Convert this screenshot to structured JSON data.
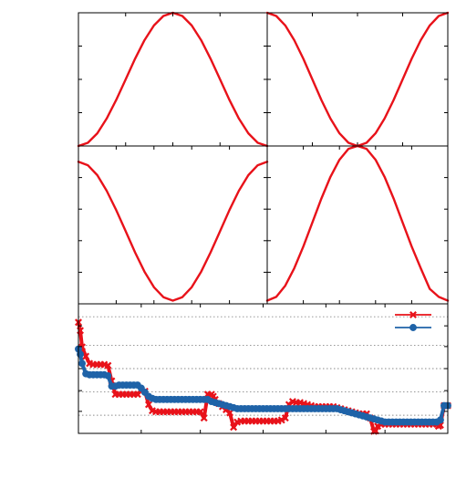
{
  "chart_data": [
    {
      "type": "line",
      "panel": "top-left",
      "title": "",
      "xlabel": "",
      "ylabel": "",
      "xlim": [
        0,
        1
      ],
      "ylim": [
        0,
        1
      ],
      "grid": false,
      "series": [
        {
          "color": "#e8121a",
          "x": [
            0,
            0.05,
            0.1,
            0.15,
            0.2,
            0.25,
            0.3,
            0.35,
            0.4,
            0.45,
            0.5,
            0.55,
            0.6,
            0.65,
            0.7,
            0.75,
            0.8,
            0.85,
            0.9,
            0.95,
            1
          ],
          "y": [
            0,
            0.024,
            0.095,
            0.206,
            0.345,
            0.5,
            0.655,
            0.794,
            0.905,
            0.976,
            1,
            0.976,
            0.905,
            0.794,
            0.655,
            0.5,
            0.345,
            0.206,
            0.095,
            0.024,
            0
          ]
        }
      ]
    },
    {
      "type": "line",
      "panel": "top-right",
      "title": "",
      "xlabel": "",
      "ylabel": "",
      "xlim": [
        0,
        1
      ],
      "ylim": [
        0,
        1
      ],
      "grid": false,
      "series": [
        {
          "color": "#e8121a",
          "x": [
            0,
            0.05,
            0.1,
            0.15,
            0.2,
            0.25,
            0.3,
            0.35,
            0.4,
            0.45,
            0.5,
            0.55,
            0.6,
            0.65,
            0.7,
            0.75,
            0.8,
            0.85,
            0.9,
            0.95,
            1
          ],
          "y": [
            1,
            0.976,
            0.905,
            0.794,
            0.655,
            0.5,
            0.345,
            0.206,
            0.095,
            0.024,
            0,
            0.024,
            0.095,
            0.206,
            0.345,
            0.5,
            0.655,
            0.794,
            0.905,
            0.976,
            1
          ]
        }
      ]
    },
    {
      "type": "line",
      "panel": "middle-left",
      "title": "",
      "xlabel": "",
      "ylabel": "",
      "xlim": [
        0,
        1
      ],
      "ylim": [
        0,
        1
      ],
      "grid": false,
      "series": [
        {
          "color": "#e8121a",
          "x": [
            0,
            0.05,
            0.1,
            0.15,
            0.2,
            0.25,
            0.3,
            0.35,
            0.4,
            0.45,
            0.5,
            0.55,
            0.6,
            0.65,
            0.7,
            0.75,
            0.8,
            0.85,
            0.9,
            0.95,
            1
          ],
          "y": [
            0.9,
            0.878,
            0.815,
            0.716,
            0.594,
            0.46,
            0.326,
            0.204,
            0.105,
            0.042,
            0.02,
            0.042,
            0.105,
            0.204,
            0.326,
            0.46,
            0.594,
            0.716,
            0.815,
            0.878,
            0.9
          ]
        }
      ]
    },
    {
      "type": "line",
      "panel": "middle-right",
      "title": "",
      "xlabel": "",
      "ylabel": "",
      "xlim": [
        0,
        1
      ],
      "ylim": [
        0,
        1
      ],
      "grid": false,
      "series": [
        {
          "color": "#e8121a",
          "x": [
            0,
            0.05,
            0.1,
            0.15,
            0.2,
            0.25,
            0.3,
            0.35,
            0.4,
            0.45,
            0.5,
            0.55,
            0.6,
            0.65,
            0.7,
            0.75,
            0.8,
            0.85,
            0.9,
            0.95,
            1
          ],
          "y": [
            0.02,
            0.044,
            0.115,
            0.226,
            0.363,
            0.515,
            0.667,
            0.804,
            0.913,
            0.982,
            1,
            0.982,
            0.913,
            0.804,
            0.667,
            0.515,
            0.363,
            0.226,
            0.095,
            0.044,
            0.02
          ]
        }
      ]
    },
    {
      "type": "line",
      "panel": "bottom",
      "title": "",
      "xlabel": "",
      "ylabel": "",
      "xlim": [
        0,
        1
      ],
      "ylim": [
        0,
        6.3
      ],
      "grid": true,
      "grid_style": "dotted horizontal",
      "legend": "top-right",
      "series": [
        {
          "color": "#e8121a",
          "marker": "x",
          "x": [
            0,
            0.005,
            0.01,
            0.02,
            0.03,
            0.04,
            0.05,
            0.06,
            0.07,
            0.08,
            0.09,
            0.1,
            0.11,
            0.12,
            0.13,
            0.14,
            0.15,
            0.16,
            0.17,
            0.18,
            0.19,
            0.2,
            0.21,
            0.22,
            0.23,
            0.24,
            0.25,
            0.26,
            0.27,
            0.28,
            0.29,
            0.3,
            0.31,
            0.32,
            0.33,
            0.34,
            0.35,
            0.36,
            0.365,
            0.37,
            0.38,
            0.39,
            0.4,
            0.41,
            0.42,
            0.43,
            0.44,
            0.45,
            0.46,
            0.47,
            0.48,
            0.49,
            0.5,
            0.51,
            0.52,
            0.53,
            0.54,
            0.55,
            0.56,
            0.57,
            0.58,
            0.59,
            0.6,
            0.61,
            0.62,
            0.63,
            0.64,
            0.65,
            0.66,
            0.67,
            0.68,
            0.69,
            0.7,
            0.71,
            0.72,
            0.73,
            0.74,
            0.75,
            0.76,
            0.77,
            0.78,
            0.79,
            0.8,
            0.805,
            0.81,
            0.82,
            0.83,
            0.84,
            0.85,
            0.86,
            0.87,
            0.88,
            0.89,
            0.9,
            0.91,
            0.92,
            0.93,
            0.94,
            0.95,
            0.96,
            0.97,
            0.975,
            0.98,
            0.99,
            1
          ],
          "y": [
            5.4,
            5.0,
            4.2,
            3.75,
            3.4,
            3.35,
            3.35,
            3.35,
            3.35,
            3.3,
            2.55,
            1.9,
            1.9,
            1.9,
            1.9,
            1.9,
            1.9,
            1.9,
            2.1,
            2.05,
            1.4,
            1.1,
            1.05,
            1.05,
            1.05,
            1.05,
            1.05,
            1.05,
            1.05,
            1.05,
            1.05,
            1.05,
            1.05,
            1.05,
            1.05,
            0.75,
            1.9,
            1.9,
            1.8,
            1.65,
            1.45,
            1.3,
            1.15,
            1.0,
            0.3,
            0.55,
            0.6,
            0.6,
            0.6,
            0.6,
            0.6,
            0.6,
            0.6,
            0.6,
            0.6,
            0.6,
            0.6,
            0.65,
            0.75,
            1.4,
            1.55,
            1.5,
            1.5,
            1.45,
            1.4,
            1.35,
            1.3,
            1.3,
            1.3,
            1.3,
            1.3,
            1.3,
            1.25,
            1.2,
            1.15,
            1.1,
            1.05,
            1.0,
            0.95,
            0.95,
            0.95,
            0.75,
            0.1,
            0.12,
            0.35,
            0.45,
            0.45,
            0.45,
            0.45,
            0.45,
            0.45,
            0.45,
            0.45,
            0.45,
            0.45,
            0.45,
            0.45,
            0.45,
            0.45,
            0.45,
            0.45,
            0.35,
            0.4,
            1.35,
            1.35
          ]
        },
        {
          "color": "#1f63a8",
          "marker": "o",
          "x": [
            0,
            0.005,
            0.01,
            0.02,
            0.03,
            0.04,
            0.05,
            0.06,
            0.07,
            0.08,
            0.09,
            0.1,
            0.11,
            0.12,
            0.13,
            0.14,
            0.15,
            0.16,
            0.17,
            0.18,
            0.19,
            0.2,
            0.21,
            0.22,
            0.23,
            0.24,
            0.25,
            0.26,
            0.27,
            0.28,
            0.29,
            0.3,
            0.31,
            0.32,
            0.33,
            0.34,
            0.35,
            0.36,
            0.37,
            0.38,
            0.39,
            0.4,
            0.41,
            0.42,
            0.43,
            0.44,
            0.45,
            0.46,
            0.47,
            0.48,
            0.49,
            0.5,
            0.51,
            0.52,
            0.53,
            0.54,
            0.55,
            0.56,
            0.57,
            0.58,
            0.59,
            0.6,
            0.61,
            0.62,
            0.63,
            0.64,
            0.65,
            0.66,
            0.67,
            0.68,
            0.69,
            0.7,
            0.71,
            0.72,
            0.73,
            0.74,
            0.75,
            0.76,
            0.77,
            0.78,
            0.79,
            0.8,
            0.81,
            0.82,
            0.83,
            0.84,
            0.85,
            0.86,
            0.87,
            0.88,
            0.89,
            0.9,
            0.91,
            0.92,
            0.93,
            0.94,
            0.95,
            0.96,
            0.97,
            0.98,
            0.99,
            1
          ],
          "y": [
            4.1,
            3.85,
            3.4,
            2.9,
            2.85,
            2.85,
            2.85,
            2.85,
            2.85,
            2.8,
            2.3,
            2.3,
            2.35,
            2.35,
            2.35,
            2.35,
            2.35,
            2.35,
            2.2,
            2.0,
            1.8,
            1.7,
            1.65,
            1.65,
            1.65,
            1.65,
            1.65,
            1.65,
            1.65,
            1.65,
            1.65,
            1.65,
            1.65,
            1.65,
            1.65,
            1.65,
            1.65,
            1.55,
            1.5,
            1.45,
            1.4,
            1.35,
            1.3,
            1.25,
            1.2,
            1.2,
            1.2,
            1.2,
            1.2,
            1.2,
            1.2,
            1.2,
            1.2,
            1.2,
            1.2,
            1.2,
            1.2,
            1.2,
            1.2,
            1.2,
            1.2,
            1.2,
            1.2,
            1.2,
            1.2,
            1.2,
            1.2,
            1.2,
            1.2,
            1.2,
            1.2,
            1.2,
            1.15,
            1.1,
            1.05,
            1.0,
            0.95,
            0.9,
            0.85,
            0.8,
            0.75,
            0.7,
            0.65,
            0.6,
            0.55,
            0.55,
            0.55,
            0.55,
            0.55,
            0.55,
            0.55,
            0.55,
            0.55,
            0.55,
            0.55,
            0.55,
            0.55,
            0.55,
            0.55,
            0.65,
            1.35,
            1.35
          ]
        }
      ]
    }
  ]
}
